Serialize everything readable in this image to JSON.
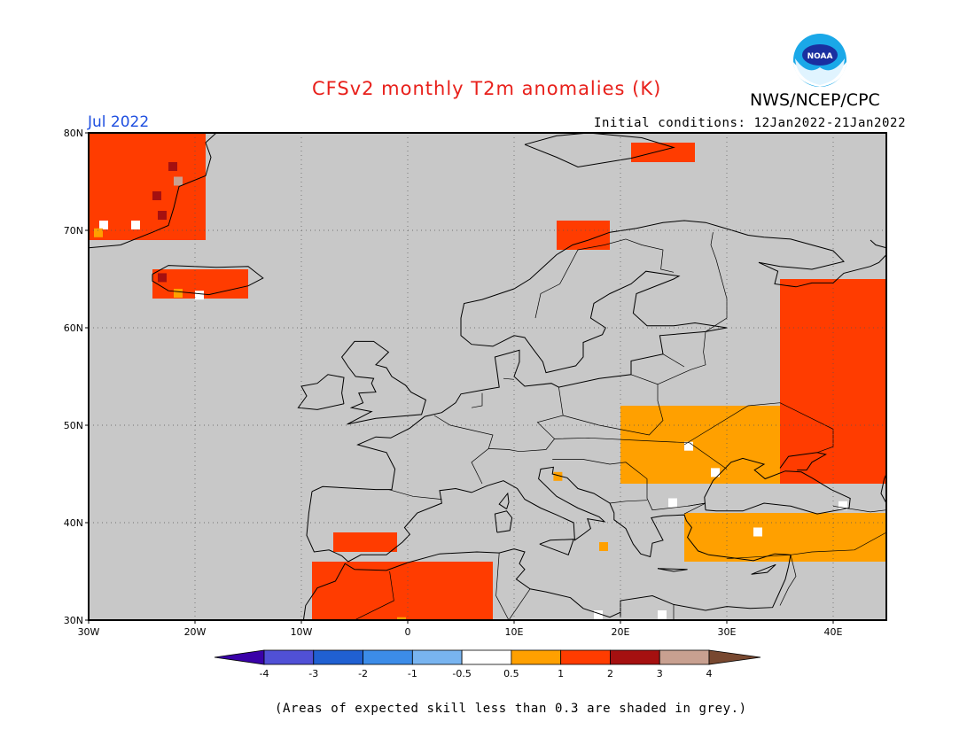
{
  "title": "CFSv2 monthly T2m anomalies (K)",
  "month": "Jul 2022",
  "organization": "NWS/NCEP/CPC",
  "logo_text": "NOAA",
  "initial_conditions": "Initial conditions: 12Jan2022-21Jan2022",
  "footnote": "(Areas of expected skill less than 0.3 are shaded in grey.)",
  "colors": {
    "title": "#e8201b",
    "month": "#1f4fe0",
    "no_skill": "#c8c8c8",
    "land_outline": "#000000"
  },
  "map": {
    "extent": {
      "lon": [
        -30,
        45
      ],
      "lat": [
        30,
        80
      ]
    },
    "lon_ticks": [
      "30W",
      "20W",
      "10W",
      "0",
      "10E",
      "20E",
      "30E",
      "40E"
    ],
    "lat_ticks": [
      "30N",
      "40N",
      "50N",
      "60N",
      "70N",
      "80N"
    ],
    "grid": "dotted",
    "anomaly_regions": [
      {
        "name": "Eastern Europe / western Russia",
        "class": "1 to 2",
        "lon": [
          35,
          45
        ],
        "lat": [
          44,
          65
        ]
      },
      {
        "name": "Ukraine / southern Russia",
        "class": "0.5 to 1",
        "lon": [
          20,
          35
        ],
        "lat": [
          44,
          52
        ]
      },
      {
        "name": "Anatolia",
        "class": "0.5 to 1",
        "lon": [
          26,
          45
        ],
        "lat": [
          36,
          41
        ]
      },
      {
        "name": "North Africa",
        "class": "1 to 2",
        "lon": [
          -9,
          8
        ],
        "lat": [
          30,
          36
        ]
      },
      {
        "name": "Southern Spain",
        "class": "1 to 2",
        "lon": [
          -7,
          -1
        ],
        "lat": [
          37,
          39
        ]
      },
      {
        "name": "Greenland east coast",
        "class": "1 to 3",
        "lon": [
          -30,
          -19
        ],
        "lat": [
          69,
          80
        ]
      },
      {
        "name": "Iceland",
        "class": "1 to 2",
        "lon": [
          -24,
          -15
        ],
        "lat": [
          63,
          66
        ]
      },
      {
        "name": "Northern Scandinavia",
        "class": "1 to 2",
        "lon": [
          14,
          19
        ],
        "lat": [
          68,
          71
        ]
      },
      {
        "name": "Svalbard",
        "class": "1 to 2",
        "lon": [
          21,
          27
        ],
        "lat": [
          77,
          79
        ]
      }
    ]
  },
  "legend": {
    "labels": [
      "-4",
      "-3",
      "-2",
      "-1",
      "-0.5",
      "0.5",
      "1",
      "2",
      "3",
      "4"
    ],
    "colors": [
      "#3a02a8",
      "#5050d6",
      "#2060d2",
      "#3c8ce8",
      "#78b4f0",
      "#ffffff",
      "#ffa000",
      "#ff3c00",
      "#a51010",
      "#c8a090",
      "#784830"
    ]
  }
}
